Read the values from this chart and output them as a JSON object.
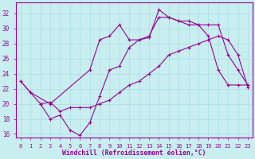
{
  "xlabel": "Windchill (Refroidissement éolien,°C)",
  "bg_color": "#c8eef0",
  "line_color": "#990099",
  "xlim": [
    -0.5,
    23.5
  ],
  "ylim": [
    15.5,
    33.5
  ],
  "xticks": [
    0,
    1,
    2,
    3,
    4,
    5,
    6,
    7,
    8,
    9,
    10,
    11,
    12,
    13,
    14,
    15,
    16,
    17,
    18,
    19,
    20,
    21,
    22,
    23
  ],
  "yticks": [
    16,
    18,
    20,
    22,
    24,
    26,
    28,
    30,
    32
  ],
  "grid_color": "#aadddd",
  "line1_x": [
    0,
    1,
    3,
    7,
    8,
    9,
    10,
    11,
    12,
    13,
    14,
    15,
    16,
    17,
    18,
    19,
    20,
    21,
    22,
    23
  ],
  "line1_y": [
    23.0,
    21.5,
    20.0,
    24.5,
    28.5,
    29.0,
    30.5,
    28.5,
    28.5,
    28.8,
    32.5,
    31.5,
    31.0,
    30.5,
    30.5,
    29.0,
    24.5,
    22.5,
    22.5,
    22.5
  ],
  "line2_x": [
    0,
    1,
    2,
    3,
    4,
    5,
    6,
    7,
    8,
    9,
    10,
    11,
    12,
    13,
    14,
    15,
    16,
    17,
    18,
    19,
    20,
    21,
    22,
    23
  ],
  "line2_y": [
    23.0,
    21.5,
    20.0,
    18.0,
    18.5,
    16.5,
    15.8,
    17.5,
    21.0,
    24.5,
    25.0,
    27.5,
    28.5,
    29.0,
    31.5,
    31.5,
    31.0,
    31.0,
    30.5,
    30.5,
    30.5,
    26.5,
    24.5,
    22.5
  ],
  "line3_x": [
    2,
    3,
    4,
    5,
    6,
    7,
    8,
    9,
    10,
    11,
    12,
    13,
    14,
    15,
    16,
    17,
    18,
    19,
    20,
    21,
    22,
    23
  ],
  "line3_y": [
    20.0,
    20.2,
    19.0,
    19.5,
    19.5,
    19.5,
    20.0,
    20.5,
    21.5,
    22.5,
    23.0,
    24.0,
    25.0,
    26.5,
    27.0,
    27.5,
    28.0,
    28.5,
    29.0,
    28.5,
    26.5,
    22.2
  ]
}
